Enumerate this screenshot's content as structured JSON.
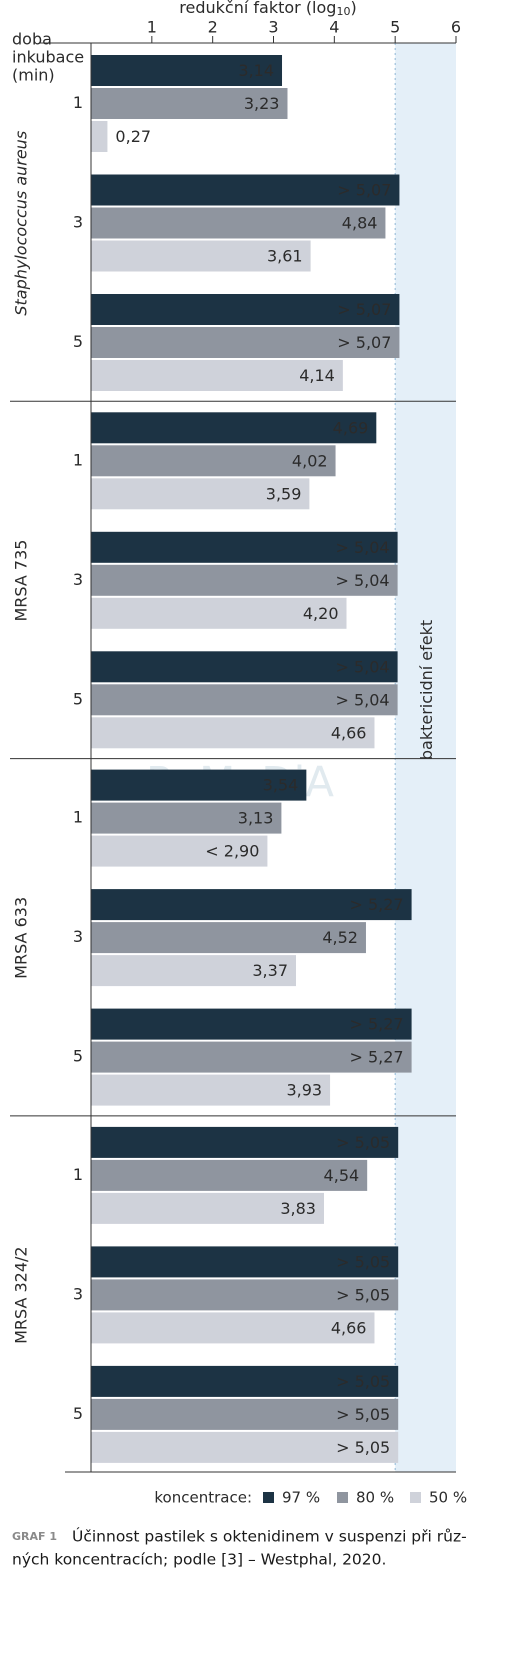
{
  "chart_data": {
    "type": "hbar",
    "x_label": [
      "redukční faktor (log",
      "10",
      ")"
    ],
    "y_label": [
      "doba",
      "inkubace",
      "(min)"
    ],
    "xlim": [
      0,
      6
    ],
    "xticks": [
      1,
      2,
      3,
      4,
      5,
      6
    ],
    "highlight": {
      "from": 5,
      "to": 6,
      "label": "baktericidní efekt",
      "color": "#e4eff8"
    },
    "watermark": "ReMeDiA",
    "groups": [
      {
        "name": "Staphylococcus aureus",
        "categories": [
          "1",
          "3",
          "5"
        ]
      },
      {
        "name": "MRSA 735",
        "categories": [
          "1",
          "3",
          "5"
        ]
      },
      {
        "name": "MRSA 633",
        "categories": [
          "1",
          "3",
          "5"
        ]
      },
      {
        "name": "MRSA 324/2",
        "categories": [
          "1",
          "3",
          "5"
        ]
      }
    ],
    "legend_title": "koncentrace:",
    "series": [
      {
        "name": "97 %",
        "color": "#1c3344",
        "values": [
          [
            3.14,
            5.07,
            5.07
          ],
          [
            4.69,
            5.04,
            5.04
          ],
          [
            3.54,
            5.27,
            5.27
          ],
          [
            5.05,
            5.05,
            5.05
          ]
        ],
        "value_labels": [
          [
            "3,14",
            "> 5,07",
            "> 5,07"
          ],
          [
            "4,69",
            "> 5,04",
            "> 5,04"
          ],
          [
            "3,54",
            "> 5,27",
            "> 5,27"
          ],
          [
            "> 5,05",
            "> 5,05",
            "> 5,05"
          ]
        ]
      },
      {
        "name": "80 %",
        "color": "#8f959f",
        "values": [
          [
            3.23,
            4.84,
            5.07
          ],
          [
            4.02,
            5.04,
            5.04
          ],
          [
            3.13,
            4.52,
            5.27
          ],
          [
            4.54,
            5.05,
            5.05
          ]
        ],
        "value_labels": [
          [
            "3,23",
            "4,84",
            "> 5,07"
          ],
          [
            "4,02",
            "> 5,04",
            "> 5,04"
          ],
          [
            "3,13",
            "4,52",
            "> 5,27"
          ],
          [
            "4,54",
            "> 5,05",
            "> 5,05"
          ]
        ]
      },
      {
        "name": "50 %",
        "color": "#cfd2da",
        "values": [
          [
            0.27,
            3.61,
            4.14
          ],
          [
            3.59,
            4.2,
            4.66
          ],
          [
            2.9,
            3.37,
            3.93
          ],
          [
            3.83,
            4.66,
            5.05
          ]
        ],
        "value_labels": [
          [
            "0,27",
            "3,61",
            "4,14"
          ],
          [
            "3,59",
            "4,20",
            "4,66"
          ],
          [
            "< 2,90",
            "3,37",
            "3,93"
          ],
          [
            "3,83",
            "4,66",
            "> 5,05"
          ]
        ]
      }
    ],
    "caption": {
      "label": "GRAF 1",
      "lines": [
        "Účinnost pastilek s oktenidinem v suspenzi při růz-",
        "ných koncentracích; podle [3] – Westphal, 2020."
      ]
    }
  }
}
